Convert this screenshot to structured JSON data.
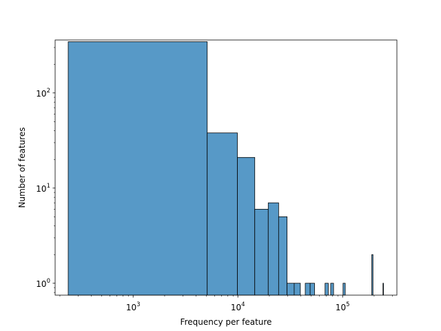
{
  "chart_data": {
    "type": "bar",
    "title": "",
    "xlabel": "Frequency per feature",
    "ylabel": "Number of features",
    "xscale": "log",
    "yscale": "log",
    "xlim": [
      180,
      330000
    ],
    "ylim": [
      0.75,
      360
    ],
    "bar_color": "#5799c7",
    "edge_color": "#000000",
    "grid": false,
    "legend": "none",
    "x_ticks": [
      {
        "value": 1000,
        "base": "10",
        "exp": "3"
      },
      {
        "value": 10000,
        "base": "10",
        "exp": "4"
      },
      {
        "value": 100000,
        "base": "10",
        "exp": "5"
      }
    ],
    "y_ticks": [
      {
        "value": 1,
        "base": "10",
        "exp": "0"
      },
      {
        "value": 10,
        "base": "10",
        "exp": "1"
      },
      {
        "value": 100,
        "base": "10",
        "exp": "2"
      }
    ],
    "bins": [
      {
        "x0": 240,
        "x1": 5100,
        "count": 345
      },
      {
        "x0": 5100,
        "x1": 9900,
        "count": 38
      },
      {
        "x0": 9900,
        "x1": 14500,
        "count": 21
      },
      {
        "x0": 14500,
        "x1": 19500,
        "count": 6
      },
      {
        "x0": 19500,
        "x1": 24500,
        "count": 7
      },
      {
        "x0": 24500,
        "x1": 29500,
        "count": 5
      },
      {
        "x0": 29500,
        "x1": 34500,
        "count": 1
      },
      {
        "x0": 34500,
        "x1": 39500,
        "count": 1
      },
      {
        "x0": 44000,
        "x1": 49000,
        "count": 1
      },
      {
        "x0": 49000,
        "x1": 54000,
        "count": 1
      },
      {
        "x0": 68000,
        "x1": 73000,
        "count": 1
      },
      {
        "x0": 77000,
        "x1": 82000,
        "count": 1
      },
      {
        "x0": 101000,
        "x1": 106000,
        "count": 1
      },
      {
        "x0": 190000,
        "x1": 195000,
        "count": 2
      },
      {
        "x0": 243000,
        "x1": 246000,
        "count": 1
      }
    ]
  }
}
